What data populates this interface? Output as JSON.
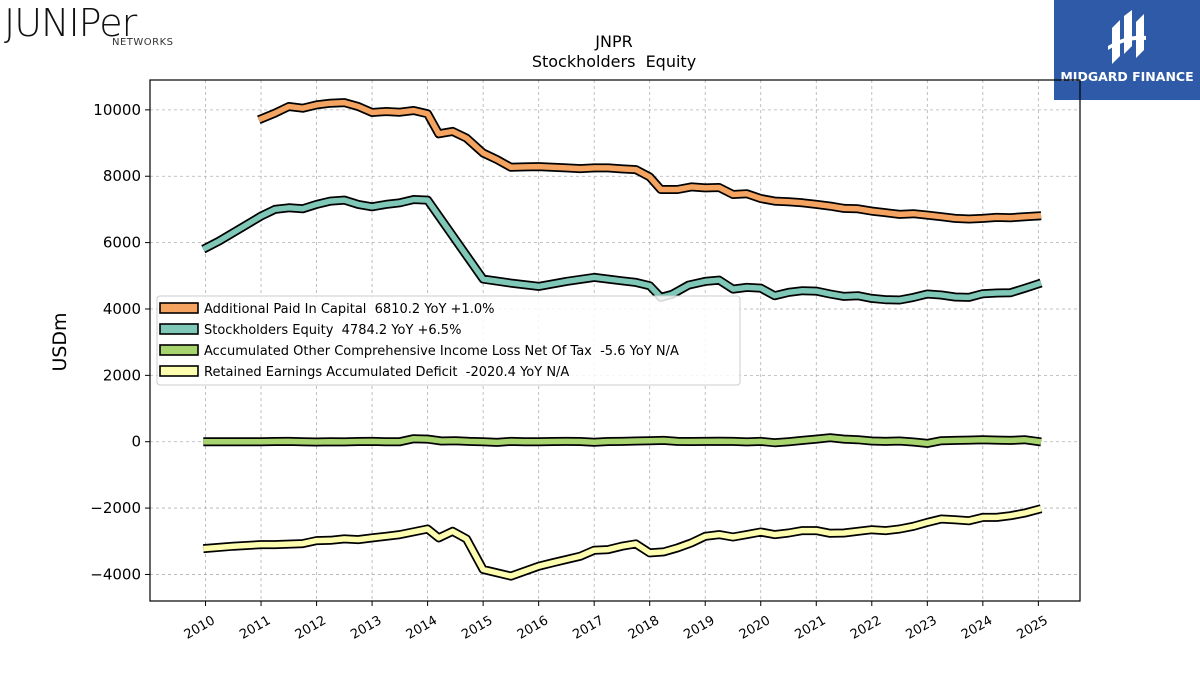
{
  "branding": {
    "left_logo_word": "JUNIPer",
    "left_logo_sub": "NETWORKS",
    "right_logo_text": "MIDGARD FINANCE",
    "right_logo_bg": "#2f5aa8"
  },
  "chart_data": {
    "type": "line",
    "title": "JNPR",
    "subtitle": "Stockholders  Equity",
    "ylabel": "USDm",
    "xlabel": "",
    "xlim": [
      2009.0,
      2025.75
    ],
    "ylim": [
      -4800,
      10900
    ],
    "yticks": [
      -4000,
      -2000,
      0,
      2000,
      4000,
      6000,
      8000,
      10000
    ],
    "ytick_labels": [
      "−4000",
      "−2000",
      "0",
      "2000",
      "4000",
      "6000",
      "8000",
      "10000"
    ],
    "xticks": [
      2010,
      2011,
      2012,
      2013,
      2014,
      2015,
      2016,
      2017,
      2018,
      2019,
      2020,
      2021,
      2022,
      2023,
      2024,
      2025
    ],
    "xtick_labels": [
      "2010",
      "2011",
      "2012",
      "2013",
      "2014",
      "2015",
      "2016",
      "2017",
      "2018",
      "2019",
      "2020",
      "2021",
      "2022",
      "2023",
      "2024",
      "2025"
    ],
    "grid": true,
    "legend_position": "center-left",
    "series": [
      {
        "name": "Additional Paid In Capital",
        "legend_label": "Additional Paid In Capital  6810.2 YoY +1.0%",
        "color": "#f4a460",
        "x": [
          2010.96,
          2011.25,
          2011.5,
          2011.75,
          2012.0,
          2012.25,
          2012.5,
          2012.75,
          2013.0,
          2013.25,
          2013.5,
          2013.75,
          2014.0,
          2014.2,
          2014.45,
          2014.7,
          2015.0,
          2015.25,
          2015.5,
          2015.75,
          2016.0,
          2016.25,
          2016.5,
          2016.75,
          2017.0,
          2017.25,
          2017.5,
          2017.75,
          2018.0,
          2018.2,
          2018.5,
          2018.75,
          2019.0,
          2019.25,
          2019.5,
          2019.75,
          2020.0,
          2020.25,
          2020.5,
          2020.75,
          2021.0,
          2021.25,
          2021.5,
          2021.75,
          2022.0,
          2022.25,
          2022.5,
          2022.75,
          2023.0,
          2023.25,
          2023.5,
          2023.75,
          2024.0,
          2024.25,
          2024.5,
          2024.75,
          2025.05
        ],
        "values": [
          9700,
          9900,
          10100,
          10050,
          10150,
          10200,
          10220,
          10100,
          9920,
          9950,
          9930,
          9980,
          9880,
          9280,
          9350,
          9150,
          8700,
          8500,
          8270,
          8280,
          8290,
          8270,
          8250,
          8230,
          8250,
          8250,
          8220,
          8200,
          7980,
          7600,
          7600,
          7680,
          7650,
          7660,
          7450,
          7470,
          7330,
          7250,
          7230,
          7200,
          7150,
          7100,
          7030,
          7020,
          6950,
          6900,
          6850,
          6870,
          6830,
          6780,
          6730,
          6710,
          6730,
          6760,
          6750,
          6780,
          6810
        ]
      },
      {
        "name": "Stockholders Equity",
        "legend_label": "Stockholders Equity  4784.2 YoY +6.5%",
        "color": "#7fc8b8",
        "x": [
          2009.96,
          2010.25,
          2010.5,
          2010.75,
          2011.0,
          2011.25,
          2011.5,
          2011.75,
          2012.0,
          2012.25,
          2012.5,
          2012.75,
          2013.0,
          2013.25,
          2013.5,
          2013.75,
          2014.0,
          2015.0,
          2015.5,
          2016.0,
          2016.5,
          2017.0,
          2017.5,
          2017.75,
          2018.0,
          2018.2,
          2018.4,
          2018.7,
          2019.0,
          2019.25,
          2019.5,
          2019.75,
          2020.0,
          2020.25,
          2020.5,
          2020.75,
          2021.0,
          2021.25,
          2021.5,
          2021.75,
          2022.0,
          2022.25,
          2022.5,
          2022.75,
          2023.0,
          2023.25,
          2023.5,
          2023.75,
          2024.0,
          2024.25,
          2024.5,
          2024.75,
          2025.05
        ],
        "values": [
          5800,
          6050,
          6300,
          6550,
          6800,
          7000,
          7050,
          7020,
          7150,
          7250,
          7280,
          7150,
          7080,
          7150,
          7200,
          7300,
          7280,
          4900,
          4780,
          4680,
          4830,
          4950,
          4850,
          4800,
          4700,
          4350,
          4440,
          4720,
          4830,
          4870,
          4600,
          4650,
          4630,
          4400,
          4500,
          4550,
          4540,
          4450,
          4380,
          4400,
          4320,
          4280,
          4270,
          4350,
          4450,
          4420,
          4360,
          4350,
          4460,
          4480,
          4490,
          4620,
          4784
        ]
      },
      {
        "name": "Accumulated Other Comprehensive Income Loss Net Of Tax",
        "legend_label": "Accumulated Other Comprehensive Income Loss Net Of Tax  -5.6 YoY N/A",
        "color": "#a8d46f",
        "x": [
          2009.96,
          2010.25,
          2010.5,
          2010.75,
          2011.0,
          2011.25,
          2011.5,
          2011.75,
          2012.0,
          2012.25,
          2012.5,
          2012.75,
          2013.0,
          2013.25,
          2013.5,
          2013.75,
          2014.0,
          2014.25,
          2014.5,
          2014.75,
          2015.0,
          2015.25,
          2015.5,
          2015.75,
          2016.0,
          2016.25,
          2016.5,
          2016.75,
          2017.0,
          2017.25,
          2017.5,
          2017.75,
          2018.0,
          2018.25,
          2018.5,
          2018.75,
          2019.0,
          2019.25,
          2019.5,
          2019.75,
          2020.0,
          2020.25,
          2020.5,
          2020.75,
          2021.0,
          2021.25,
          2021.5,
          2021.75,
          2022.0,
          2022.25,
          2022.5,
          2022.75,
          2023.0,
          2023.25,
          2023.5,
          2023.75,
          2024.0,
          2024.25,
          2024.5,
          2024.75,
          2025.05
        ],
        "values": [
          0,
          0,
          0,
          0,
          0,
          5,
          10,
          0,
          -10,
          0,
          -5,
          5,
          10,
          0,
          0,
          90,
          80,
          20,
          30,
          10,
          0,
          -20,
          10,
          0,
          0,
          5,
          10,
          5,
          -15,
          5,
          10,
          20,
          30,
          40,
          10,
          5,
          10,
          15,
          10,
          -5,
          10,
          -30,
          0,
          40,
          80,
          120,
          80,
          60,
          20,
          10,
          20,
          -10,
          -50,
          30,
          40,
          50,
          60,
          50,
          40,
          60,
          -6
        ]
      },
      {
        "name": "Retained Earnings Accumulated Deficit",
        "legend_label": "Retained Earnings Accumulated Deficit  -2020.4 YoY N/A",
        "color": "#fdfdb0",
        "x": [
          2009.96,
          2010.5,
          2011.0,
          2011.25,
          2011.75,
          2012.0,
          2012.25,
          2012.5,
          2012.75,
          2013.0,
          2013.25,
          2013.5,
          2014.0,
          2014.2,
          2014.45,
          2014.7,
          2015.0,
          2015.5,
          2016.0,
          2016.25,
          2016.5,
          2016.75,
          2017.0,
          2017.25,
          2017.5,
          2017.75,
          2018.0,
          2018.25,
          2018.5,
          2018.75,
          2019.0,
          2019.25,
          2019.5,
          2019.75,
          2020.0,
          2020.25,
          2020.5,
          2020.75,
          2021.0,
          2021.25,
          2021.5,
          2021.75,
          2022.0,
          2022.25,
          2022.5,
          2022.75,
          2023.0,
          2023.25,
          2023.5,
          2023.75,
          2024.0,
          2024.25,
          2024.5,
          2024.75,
          2025.05
        ],
        "values": [
          -3220,
          -3150,
          -3100,
          -3100,
          -3070,
          -2980,
          -2970,
          -2930,
          -2950,
          -2900,
          -2850,
          -2800,
          -2630,
          -2900,
          -2700,
          -2930,
          -3850,
          -4050,
          -3750,
          -3650,
          -3550,
          -3450,
          -3270,
          -3250,
          -3150,
          -3080,
          -3350,
          -3320,
          -3200,
          -3050,
          -2850,
          -2800,
          -2870,
          -2800,
          -2720,
          -2800,
          -2750,
          -2680,
          -2680,
          -2760,
          -2750,
          -2700,
          -2650,
          -2680,
          -2630,
          -2550,
          -2430,
          -2330,
          -2350,
          -2380,
          -2280,
          -2280,
          -2230,
          -2150,
          -2020
        ]
      }
    ]
  }
}
